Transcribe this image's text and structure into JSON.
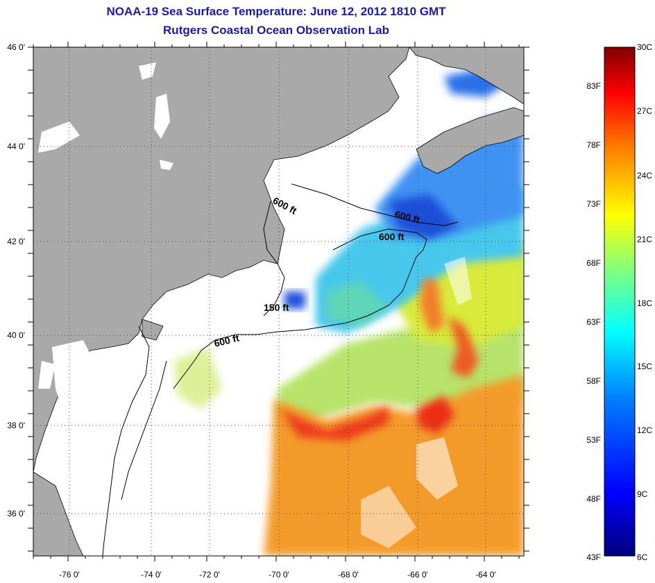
{
  "header": {
    "title": "NOAA-19 Sea Surface Temperature:  June 12, 2012 1810 GMT",
    "subtitle": "Rutgers Coastal Ocean Observation Lab"
  },
  "map": {
    "lon_ticks": [
      "-76 0'",
      "-74 0'",
      "-72 0'",
      "-70 0'",
      "-68 0'",
      "-66 0'",
      "-64 0'"
    ],
    "lat_ticks": [
      "46 0'",
      "44 0'",
      "42 0'",
      "40 0'",
      "38 0'",
      "36 0'"
    ],
    "contour_labels": [
      "600 ft",
      "600 ft",
      "600 ft",
      "150 ft",
      "600 ft"
    ],
    "colors": {
      "land": "#a9a9a9",
      "no_data": "#ffffff"
    }
  },
  "colorbar": {
    "celsius": [
      "30C",
      "27C",
      "24C",
      "21C",
      "18C",
      "15C",
      "12C",
      "9C",
      "6C"
    ],
    "fahrenheit": [
      "83F",
      "78F",
      "73F",
      "68F",
      "63F",
      "58F",
      "53F",
      "48F",
      "43F"
    ],
    "colors": [
      "#00007f",
      "#0000ff",
      "#007fff",
      "#00ffff",
      "#7fff7f",
      "#ffff00",
      "#ff7f00",
      "#ff0000",
      "#7f0000"
    ]
  }
}
